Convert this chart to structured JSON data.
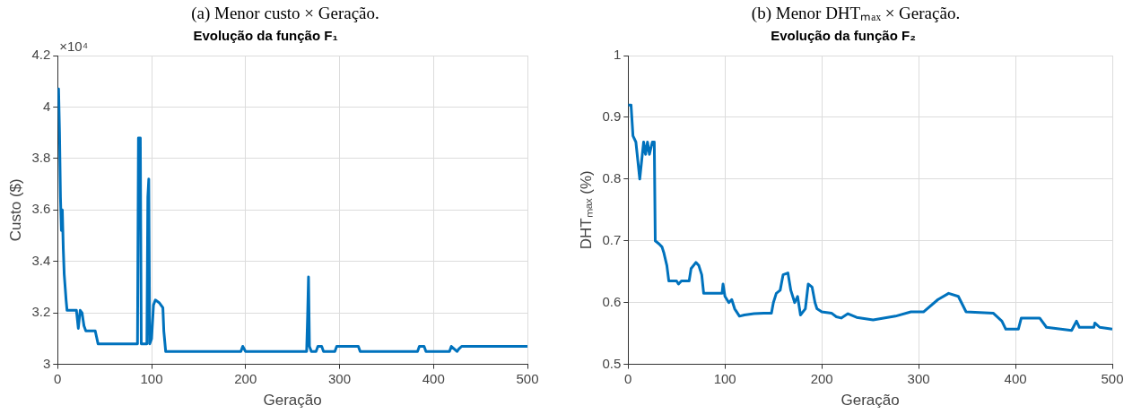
{
  "chart_data": [
    {
      "type": "line",
      "title": "Evolução da função F₁",
      "xlabel": "Geração",
      "ylabel": "Custo ($)",
      "annotations": [
        "(a) Menor custo × Geração.",
        "×10⁴"
      ],
      "xlim": [
        0,
        500
      ],
      "xticks": [
        0,
        100,
        200,
        300,
        400,
        500
      ],
      "ylim": [
        3,
        4.2
      ],
      "yticks": [
        3,
        3.2,
        3.4,
        3.6,
        3.8,
        4,
        4.2
      ],
      "grid": true,
      "marker": "none",
      "line_style": "solid",
      "series": [
        {
          "color": "#0072bd",
          "x": [
            0,
            1,
            2,
            3,
            4,
            5,
            6,
            7,
            8,
            9,
            10,
            20,
            22,
            24,
            26,
            28,
            30,
            40,
            43,
            85,
            86,
            88,
            89,
            95,
            96,
            97,
            98,
            100,
            102,
            104,
            108,
            112,
            113,
            115,
            195,
            197,
            200,
            265,
            266,
            267,
            268,
            270,
            275,
            277,
            281,
            283,
            295,
            297,
            320,
            322,
            383,
            385,
            390,
            392,
            417,
            419,
            422,
            425,
            427,
            430,
            500
          ],
          "values": [
            4.07,
            4.07,
            3.9,
            3.65,
            3.52,
            3.6,
            3.45,
            3.35,
            3.3,
            3.25,
            3.21,
            3.21,
            3.14,
            3.21,
            3.2,
            3.15,
            3.13,
            3.13,
            3.08,
            3.08,
            3.88,
            3.88,
            3.08,
            3.08,
            3.65,
            3.72,
            3.08,
            3.1,
            3.23,
            3.25,
            3.24,
            3.22,
            3.13,
            3.05,
            3.05,
            3.07,
            3.05,
            3.05,
            3.18,
            3.34,
            3.07,
            3.05,
            3.05,
            3.07,
            3.07,
            3.05,
            3.05,
            3.07,
            3.07,
            3.05,
            3.05,
            3.07,
            3.07,
            3.05,
            3.05,
            3.07,
            3.06,
            3.05,
            3.06,
            3.07,
            3.07
          ]
        }
      ]
    },
    {
      "type": "line",
      "title": "Evolução da função F₂",
      "xlabel": "Geração",
      "ylabel": "DHTₘₐₓ (%)",
      "annotations": [
        "(b) Menor DHTₘₐₓ × Geração."
      ],
      "xlim": [
        0,
        500
      ],
      "xticks": [
        0,
        100,
        200,
        300,
        400,
        500
      ],
      "ylim": [
        0.5,
        1
      ],
      "yticks": [
        0.5,
        0.6,
        0.7,
        0.8,
        0.9,
        1
      ],
      "grid": true,
      "marker": "none",
      "line_style": "solid",
      "series": [
        {
          "color": "#0072bd",
          "x": [
            0,
            3,
            5,
            8,
            10,
            12,
            14,
            16,
            18,
            20,
            22,
            25,
            27,
            28,
            32,
            35,
            37,
            40,
            42,
            50,
            52,
            55,
            63,
            65,
            70,
            73,
            76,
            78,
            97,
            98,
            100,
            104,
            107,
            110,
            115,
            120,
            130,
            140,
            148,
            150,
            153,
            157,
            160,
            165,
            168,
            172,
            175,
            178,
            183,
            186,
            190,
            193,
            195,
            200,
            210,
            215,
            220,
            227,
            236,
            253,
            276,
            292,
            305,
            320,
            331,
            341,
            349,
            377,
            386,
            390,
            403,
            406,
            425,
            432,
            458,
            463,
            466,
            481,
            482,
            487,
            500
          ],
          "values": [
            0.92,
            0.92,
            0.87,
            0.86,
            0.83,
            0.8,
            0.83,
            0.86,
            0.84,
            0.86,
            0.84,
            0.86,
            0.86,
            0.7,
            0.695,
            0.69,
            0.68,
            0.66,
            0.635,
            0.635,
            0.63,
            0.635,
            0.635,
            0.655,
            0.665,
            0.66,
            0.645,
            0.615,
            0.615,
            0.63,
            0.61,
            0.6,
            0.605,
            0.59,
            0.578,
            0.58,
            0.582,
            0.583,
            0.583,
            0.6,
            0.615,
            0.62,
            0.645,
            0.648,
            0.62,
            0.6,
            0.61,
            0.58,
            0.59,
            0.63,
            0.625,
            0.6,
            0.59,
            0.585,
            0.583,
            0.577,
            0.575,
            0.582,
            0.576,
            0.572,
            0.578,
            0.585,
            0.585,
            0.605,
            0.615,
            0.61,
            0.585,
            0.583,
            0.57,
            0.557,
            0.557,
            0.575,
            0.575,
            0.56,
            0.555,
            0.57,
            0.56,
            0.56,
            0.567,
            0.56,
            0.557
          ]
        }
      ]
    }
  ]
}
